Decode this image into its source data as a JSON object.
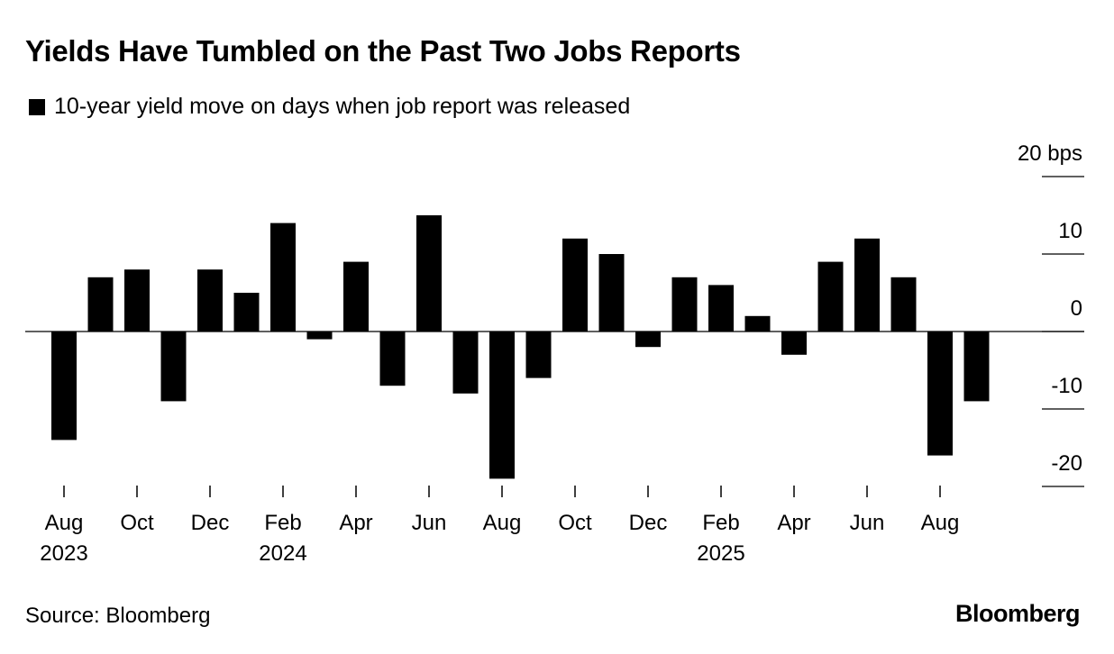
{
  "title": "Yields Have Tumbled on the Past Two Jobs Reports",
  "legend": {
    "label": "10-year yield move on days when job report was released",
    "color": "#000000"
  },
  "source": "Source: Bloomberg",
  "brand": "Bloomberg",
  "chart_data": {
    "type": "bar",
    "title": "Yields Have Tumbled on the Past Two Jobs Reports",
    "ylabel": "",
    "yunit": "bps",
    "ylim": [
      -20,
      20
    ],
    "yticks": [
      {
        "value": 20,
        "label": "20 bps"
      },
      {
        "value": 10,
        "label": "10"
      },
      {
        "value": 0,
        "label": "0"
      },
      {
        "value": -10,
        "label": "-10"
      },
      {
        "value": -20,
        "label": "-20"
      }
    ],
    "categories": [
      "Aug 2023",
      "Sep 2023",
      "Oct 2023",
      "Nov 2023",
      "Dec 2023",
      "Jan 2024",
      "Feb 2024",
      "Mar 2024",
      "Apr 2024",
      "May 2024",
      "Jun 2024",
      "Jul 2024",
      "Aug 2024",
      "Sep 2024",
      "Oct 2024",
      "Nov 2024",
      "Dec 2024",
      "Jan 2025",
      "Feb 2025",
      "Mar 2025",
      "Apr 2025",
      "May 2025",
      "Jun 2025",
      "Jul 2025",
      "Aug 2025",
      "Sep 2025"
    ],
    "series": [
      {
        "name": "10-year yield move on days when job report was released",
        "values": [
          -14,
          7,
          8,
          -9,
          8,
          5,
          14,
          -1,
          9,
          -7,
          15,
          -8,
          -19,
          -6,
          12,
          10,
          -2,
          7,
          6,
          2,
          -3,
          9,
          12,
          7,
          -16,
          -9
        ]
      }
    ],
    "xticks": [
      {
        "index": 0,
        "label": "Aug",
        "year": "2023"
      },
      {
        "index": 2,
        "label": "Oct",
        "year": ""
      },
      {
        "index": 4,
        "label": "Dec",
        "year": ""
      },
      {
        "index": 6,
        "label": "Feb",
        "year": "2024"
      },
      {
        "index": 8,
        "label": "Apr",
        "year": ""
      },
      {
        "index": 10,
        "label": "Jun",
        "year": ""
      },
      {
        "index": 12,
        "label": "Aug",
        "year": ""
      },
      {
        "index": 14,
        "label": "Oct",
        "year": ""
      },
      {
        "index": 16,
        "label": "Dec",
        "year": ""
      },
      {
        "index": 18,
        "label": "Feb",
        "year": "2025"
      },
      {
        "index": 20,
        "label": "Apr",
        "year": ""
      },
      {
        "index": 22,
        "label": "Jun",
        "year": ""
      },
      {
        "index": 24,
        "label": "Aug",
        "year": ""
      }
    ],
    "bar_color": "#000000",
    "grid": false,
    "legend_position": "top-left"
  }
}
